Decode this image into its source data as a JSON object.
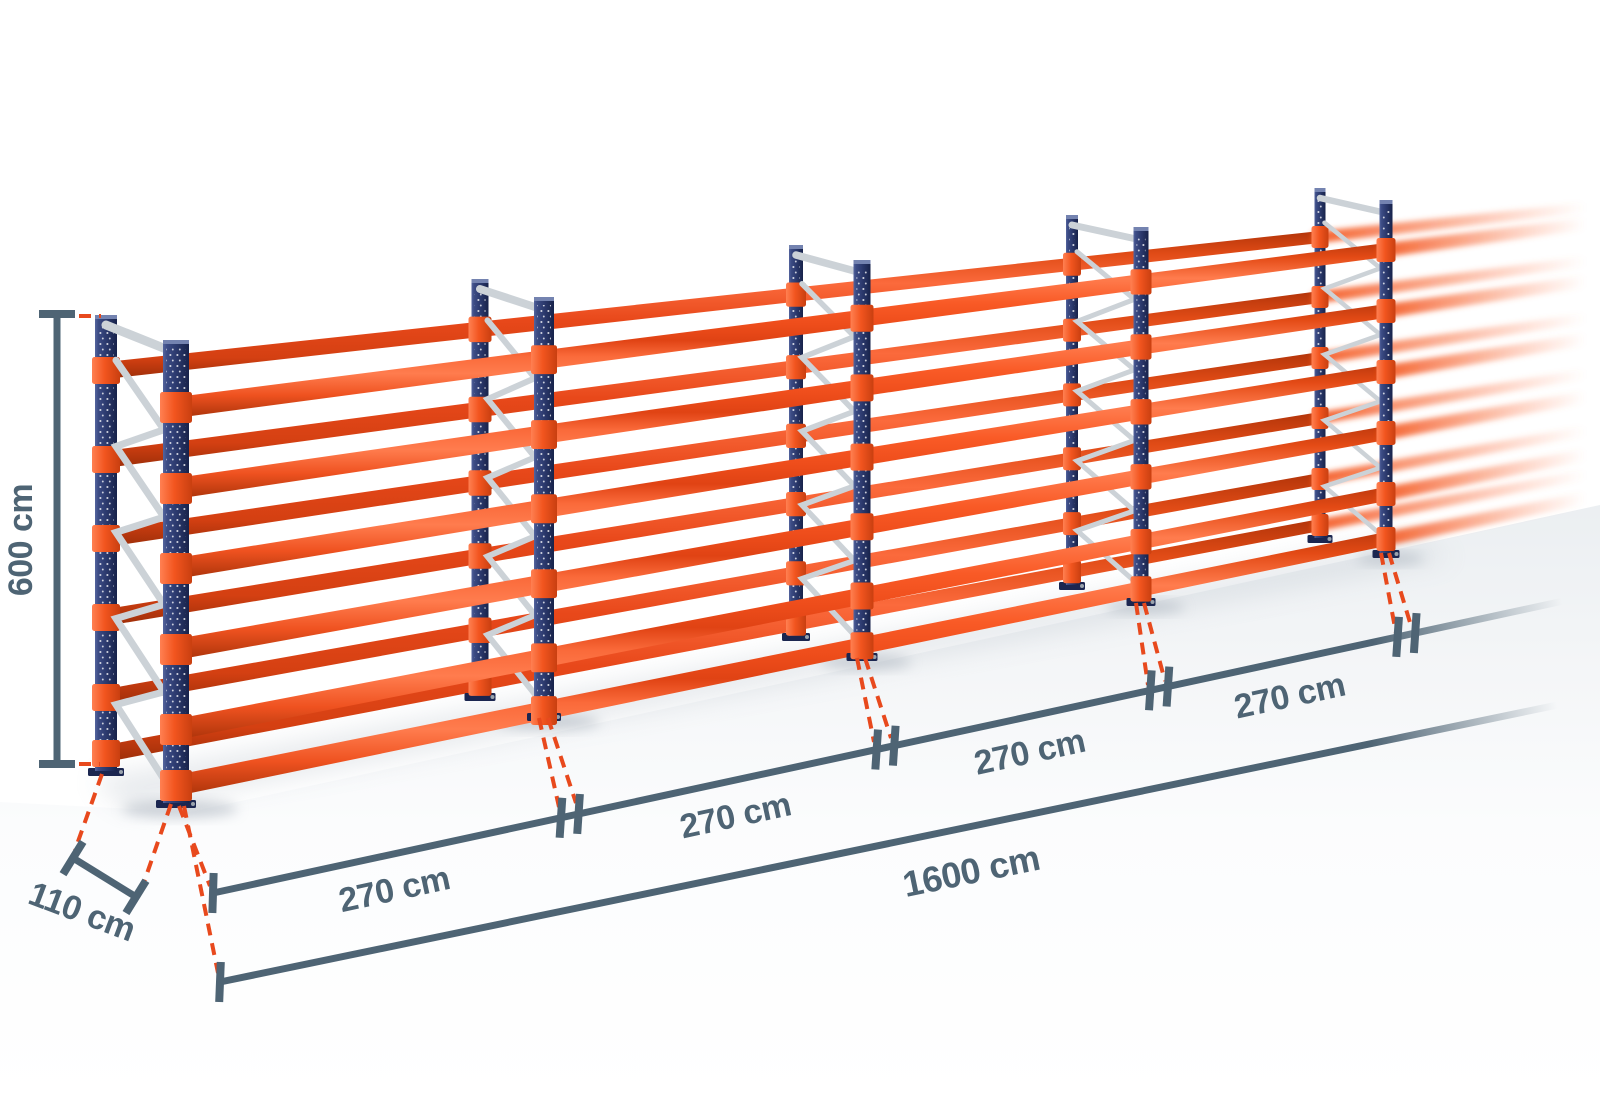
{
  "illustration": {
    "name": "pallet-racking-dimension-diagram",
    "description": "Row of pallet racking with five upright frames and six orange beam levels, continuing and fading out to the right, with dimension annotations"
  },
  "dimensions": {
    "height": "600 cm",
    "depth": "110 cm",
    "bays": [
      "270 cm",
      "270 cm",
      "270 cm",
      "270 cm"
    ],
    "total": "1600 cm"
  },
  "counts": {
    "frames_visible": 5,
    "beam_levels": 6,
    "bay_labels": 4
  },
  "colors": {
    "beam_orange": "#f4511e",
    "beam_highlight": "#ff7c4e",
    "beam_dark": "#bf3a0e",
    "upright_blue": "#2c3a6e",
    "upright_dark": "#1b2650",
    "sleeve_orange": "#f2551f",
    "brace_silver": "#ccd2d7",
    "dimension_slate": "#4e6474",
    "leader_red": "#e8491d",
    "floor_grey": "#e9edf0",
    "background": "#ffffff"
  }
}
